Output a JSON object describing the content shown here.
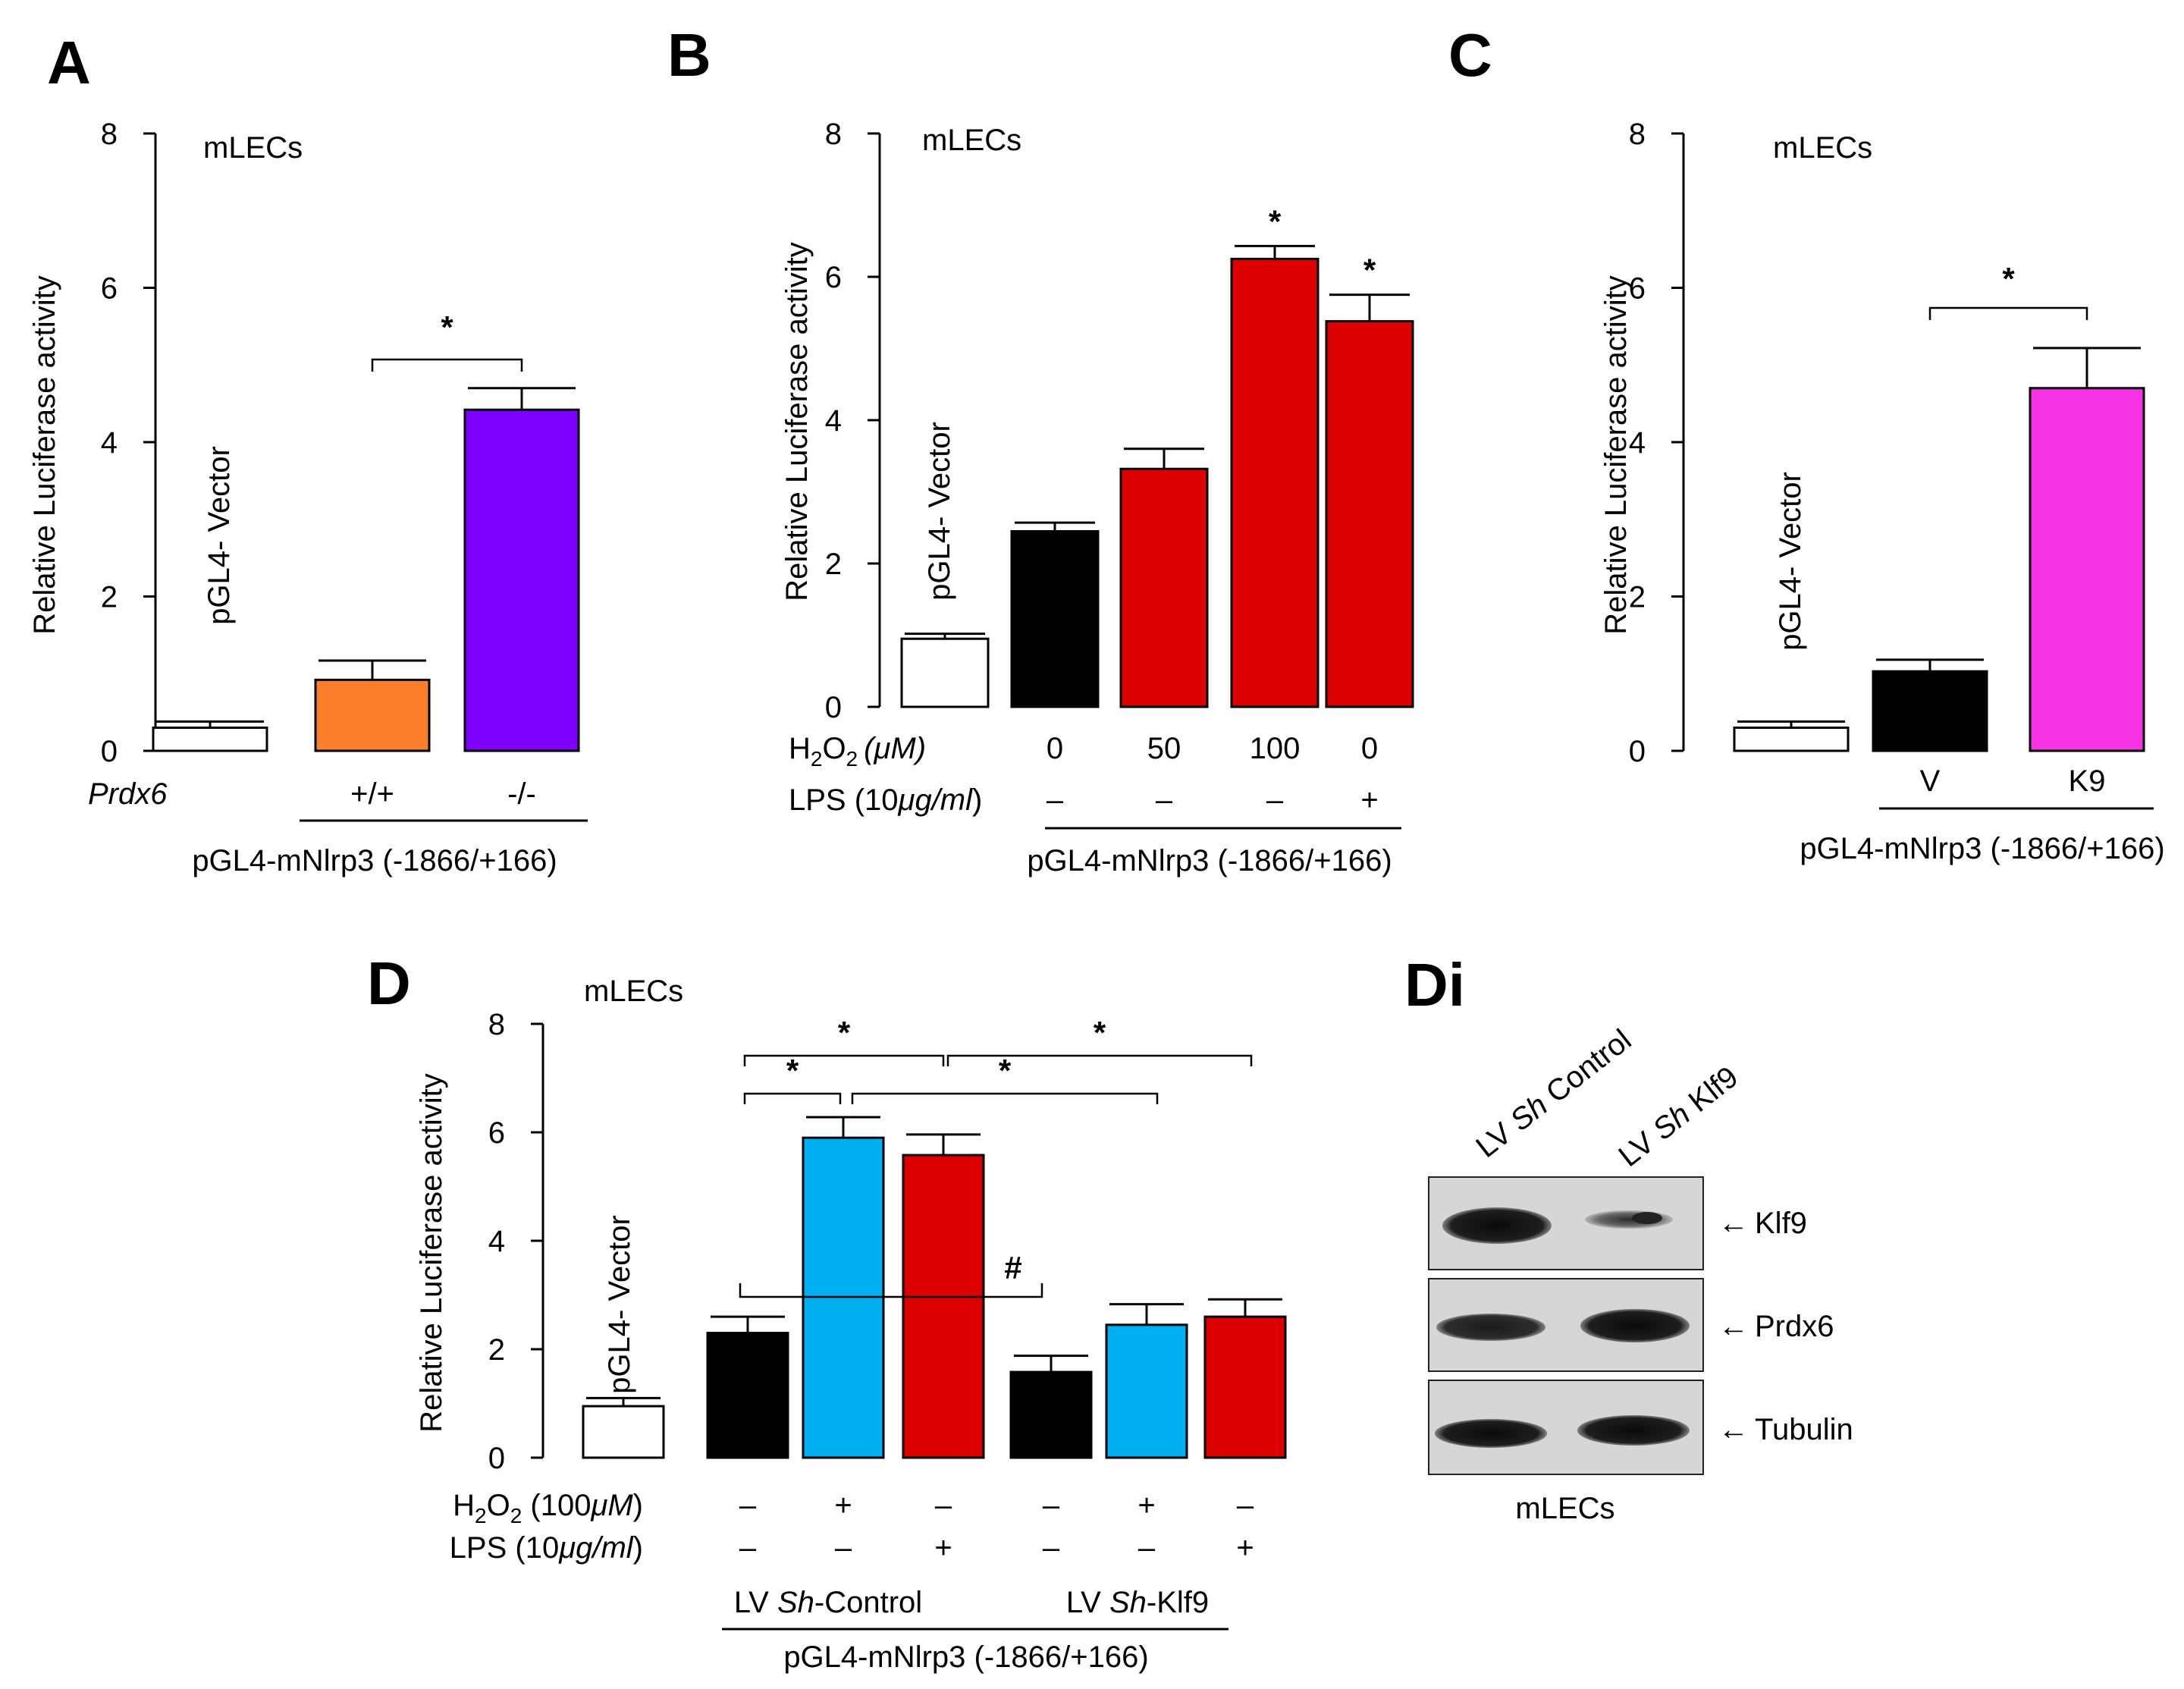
{
  "figure": {
    "panels": [
      {
        "key": "A",
        "label": "A",
        "cell_label": "mLECs",
        "type": "bar",
        "ylabel": "Relative Luciferase activity",
        "ylim": [
          0,
          8
        ],
        "yticks": [
          "0",
          "2",
          "4",
          "6",
          "8"
        ],
        "bars": [
          {
            "name": "pGL4- Vector",
            "value": 0.3,
            "error": 0.08,
            "color": "#ffffff",
            "label": "pGL4- Vector"
          },
          {
            "name": "+/+",
            "value": 0.92,
            "error": 0.25,
            "color": "#fb7f2a"
          },
          {
            "name": "-/-",
            "value": 4.42,
            "error": 0.28,
            "color": "#7f00ff"
          }
        ],
        "rows": [
          {
            "label": "Prdx6",
            "values": [
              "",
              "+/+",
              "-/-"
            ]
          }
        ],
        "footer": "pGL4-mNlrp3 (-1866/+166)",
        "significance": [
          {
            "from": 1,
            "to": 2,
            "mark": "*"
          }
        ]
      },
      {
        "key": "B",
        "label": "B",
        "cell_label": "mLECs",
        "type": "bar",
        "ylabel": "Relative Luciferase activity",
        "ylim": [
          0,
          8
        ],
        "yticks": [
          "0",
          "2",
          "4",
          "6",
          "8"
        ],
        "bars": [
          {
            "name": "pGL4- Vector",
            "value": 0.95,
            "error": 0.07,
            "color": "#ffffff",
            "label": "pGL4- Vector"
          },
          {
            "name": "H2O2 0",
            "value": 2.45,
            "error": 0.12,
            "color": "#000000"
          },
          {
            "name": "H2O2 50",
            "value": 3.32,
            "error": 0.28,
            "color": "#dd0000"
          },
          {
            "name": "H2O2 100",
            "value": 6.25,
            "error": 0.18,
            "color": "#dd0000",
            "mark": "*"
          },
          {
            "name": "LPS",
            "value": 5.38,
            "error": 0.37,
            "color": "#dd0000",
            "mark": "*"
          }
        ],
        "row1_prefix": "H",
        "row1_sub": "2",
        "row1_mid": "O",
        "row1_sub2": "2",
        "row1_unit": "(μM)",
        "row1_values": [
          "0",
          "50",
          "100",
          "0"
        ],
        "row2_prefix": "LPS (10",
        "row2_unit": "μg/ml",
        "row2_suffix": ")",
        "row2_values": [
          "–",
          "–",
          "–",
          "+"
        ],
        "footer": "pGL4-mNlrp3 (-1866/+166)"
      },
      {
        "key": "C",
        "label": "C",
        "cell_label": "mLECs",
        "type": "bar",
        "ylabel": "Relative Luciferase activity",
        "ylim": [
          0,
          8
        ],
        "yticks": [
          "0",
          "2",
          "4",
          "6",
          "8"
        ],
        "bars": [
          {
            "name": "pGL4- Vector",
            "value": 0.3,
            "error": 0.08,
            "color": "#ffffff",
            "label": "pGL4- Vector"
          },
          {
            "name": "V",
            "value": 1.03,
            "error": 0.15,
            "color": "#000000"
          },
          {
            "name": "K9",
            "value": 4.7,
            "error": 0.52,
            "color": "#f833e6"
          }
        ],
        "rows": [
          {
            "label": "",
            "values": [
              "",
              "V",
              "K9"
            ]
          }
        ],
        "footer": "pGL4-mNlrp3 (-1866/+166)",
        "significance": [
          {
            "from": 1,
            "to": 2,
            "mark": "*"
          }
        ]
      },
      {
        "key": "D",
        "label": "D",
        "cell_label": "mLECs",
        "type": "bar",
        "ylabel": "Relative Luciferase activity",
        "ylim": [
          0,
          8
        ],
        "yticks": [
          "0",
          "2",
          "4",
          "6",
          "8"
        ],
        "bars": [
          {
            "name": "pGL4- Vector",
            "value": 0.95,
            "error": 0.15,
            "color": "#ffffff",
            "label": "pGL4- Vector"
          },
          {
            "name": "Sh-Control untreated",
            "value": 2.3,
            "error": 0.3,
            "color": "#000000"
          },
          {
            "name": "Sh-Control H2O2",
            "value": 5.9,
            "error": 0.38,
            "color": "#00b0f0"
          },
          {
            "name": "Sh-Control LPS",
            "value": 5.58,
            "error": 0.38,
            "color": "#dd0000"
          },
          {
            "name": "Sh-Klf9 untreated",
            "value": 1.58,
            "error": 0.3,
            "color": "#000000"
          },
          {
            "name": "Sh-Klf9 H2O2",
            "value": 2.45,
            "error": 0.38,
            "color": "#00b0f0"
          },
          {
            "name": "Sh-Klf9 LPS",
            "value": 2.6,
            "error": 0.32,
            "color": "#dd0000"
          }
        ],
        "row1_prefix": "H",
        "row1_sub": "2",
        "row1_mid": "O",
        "row1_sub2": "2",
        "row1_unit_pre": " (100",
        "row1_unit": "μM",
        "row1_suffix": ")",
        "row1_values": [
          "–",
          "+",
          "–",
          "–",
          "+",
          "–"
        ],
        "row2_prefix": "LPS (10",
        "row2_unit": "μg/ml",
        "row2_suffix": ")",
        "row2_values": [
          "–",
          "–",
          "+",
          "–",
          "–",
          "+"
        ],
        "group1_prefix": "LV ",
        "group1_italic": "Sh",
        "group1_suffix": "-Control",
        "group2_prefix": "LV ",
        "group2_italic": "Sh",
        "group2_suffix": "-Klf9",
        "footer": "pGL4-mNlrp3 (-1866/+166)",
        "significance": [
          {
            "from": 1,
            "to": 2,
            "mark": "*"
          },
          {
            "from": 1,
            "to": 3,
            "mark": "*"
          },
          {
            "from": 2,
            "to": 5,
            "mark": "*"
          },
          {
            "from": 3,
            "to": 6,
            "mark": "*"
          },
          {
            "from": 1,
            "to": 4,
            "mark": "#"
          }
        ]
      }
    ],
    "blot": {
      "label": "Di",
      "lane1_prefix": "LV ",
      "lane1_italic": "Sh",
      "lane1_suffix": " Control",
      "lane2_prefix": "LV ",
      "lane2_italic": "Sh",
      "lane2_suffix": " Klf9",
      "proteins": [
        "Klf9",
        "Prdx6",
        "Tubulin"
      ],
      "arrow": "←",
      "footer": "mLECs"
    }
  },
  "chart_data": [
    {
      "type": "bar",
      "panel": "A",
      "categories": [
        "pGL4- Vector",
        "+/+",
        "-/-"
      ],
      "values": [
        0.3,
        0.92,
        4.42
      ],
      "errors": [
        0.08,
        0.25,
        0.28
      ],
      "ylabel": "Relative Luciferase activity",
      "ylim": [
        0,
        8
      ]
    },
    {
      "type": "bar",
      "panel": "B",
      "categories": [
        "pGL4- Vector",
        "0",
        "50",
        "100",
        "LPS"
      ],
      "values": [
        0.95,
        2.45,
        3.32,
        6.25,
        5.38
      ],
      "errors": [
        0.07,
        0.12,
        0.28,
        0.18,
        0.37
      ],
      "ylabel": "Relative Luciferase activity",
      "ylim": [
        0,
        8
      ]
    },
    {
      "type": "bar",
      "panel": "C",
      "categories": [
        "pGL4- Vector",
        "V",
        "K9"
      ],
      "values": [
        0.3,
        1.03,
        4.7
      ],
      "errors": [
        0.08,
        0.15,
        0.52
      ],
      "ylabel": "Relative Luciferase activity",
      "ylim": [
        0,
        8
      ]
    },
    {
      "type": "bar",
      "panel": "D",
      "categories": [
        "pGL4- Vector",
        "Sh-Control –",
        "Sh-Control H2O2",
        "Sh-Control LPS",
        "Sh-Klf9 –",
        "Sh-Klf9 H2O2",
        "Sh-Klf9 LPS"
      ],
      "values": [
        0.95,
        2.3,
        5.9,
        5.58,
        1.58,
        2.45,
        2.6
      ],
      "errors": [
        0.15,
        0.3,
        0.38,
        0.38,
        0.3,
        0.38,
        0.32
      ],
      "ylabel": "Relative Luciferase activity",
      "ylim": [
        0,
        8
      ]
    }
  ]
}
